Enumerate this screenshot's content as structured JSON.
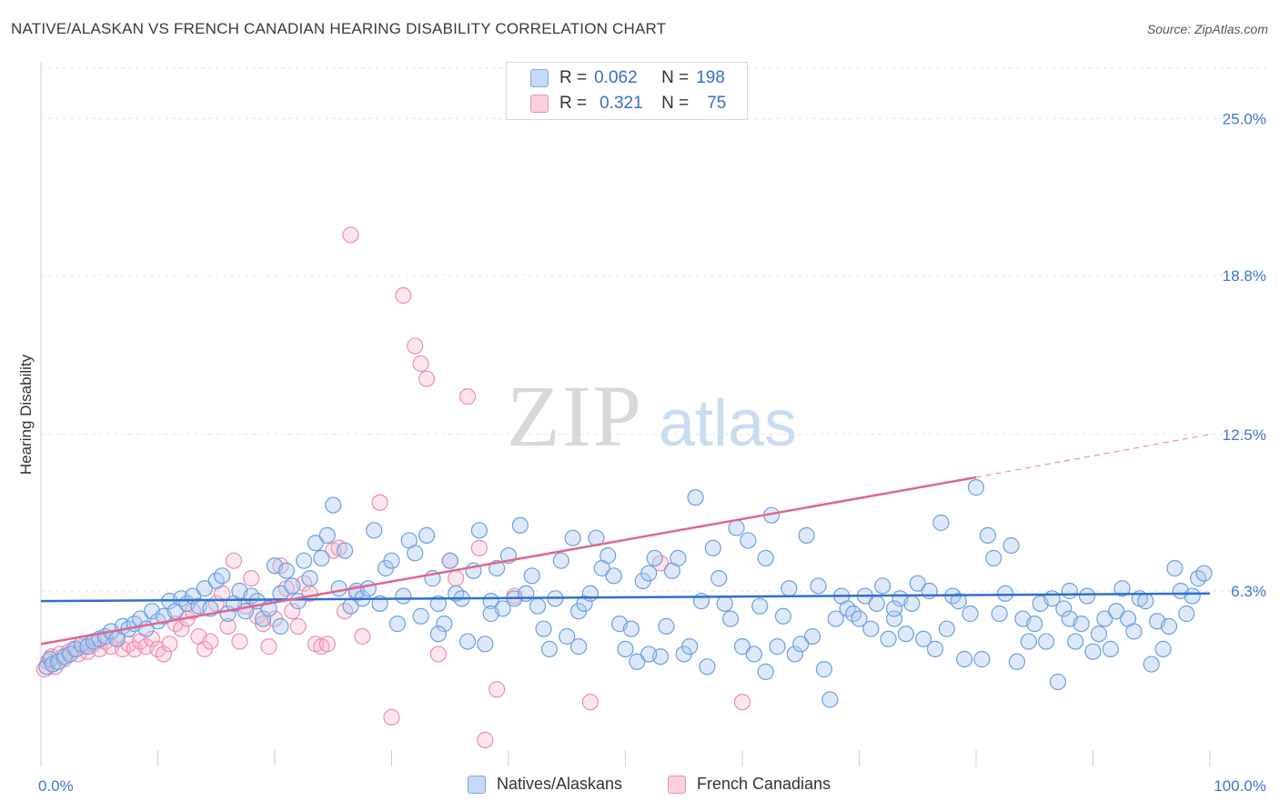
{
  "title": "NATIVE/ALASKAN VS FRENCH CANADIAN HEARING DISABILITY CORRELATION CHART",
  "source": "Source: ZipAtlas.com",
  "watermark": {
    "part1": "ZIP",
    "part2": "atlas"
  },
  "legend": {
    "rows": [
      {
        "r_label": "R =",
        "r_value": "0.062",
        "n_label": "N =",
        "n_value": "198",
        "color": "#aac8f0"
      },
      {
        "r_label": "R =",
        "r_value": "0.321",
        "n_label": "N =",
        "n_value": "75",
        "color": "#f5b8cb"
      }
    ]
  },
  "bottom_legend": [
    {
      "label": "Natives/Alaskans",
      "color": "#aac8f0"
    },
    {
      "label": "French Canadians",
      "color": "#f5b8cb"
    }
  ],
  "chart_data": {
    "type": "scatter",
    "xlabel": "",
    "ylabel": "Hearing Disability",
    "xlim": [
      0,
      100
    ],
    "ylim": [
      0,
      27
    ],
    "x_tick_labels": [
      "0.0%",
      "100.0%"
    ],
    "y_ticks": [
      6.3,
      12.5,
      18.8,
      25.0
    ],
    "y_tick_labels": [
      "6.3%",
      "12.5%",
      "18.8%",
      "25.0%"
    ],
    "grid": true,
    "colors": {
      "blue": "#6d9fe0",
      "pink": "#ec8fb0",
      "blue_line": "#2e6fd0",
      "pink_line": "#e0658f"
    },
    "series": [
      {
        "name": "Natives/Alaskans",
        "trend": {
          "x0": 0,
          "y0": 5.9,
          "x1": 100,
          "y1": 6.2
        },
        "points": [
          [
            0.5,
            3.3
          ],
          [
            0.8,
            3.6
          ],
          [
            1.0,
            3.4
          ],
          [
            1.5,
            3.5
          ],
          [
            2.0,
            3.7
          ],
          [
            2.5,
            3.8
          ],
          [
            3.0,
            4.0
          ],
          [
            3.5,
            4.2
          ],
          [
            4.0,
            4.1
          ],
          [
            4.5,
            4.3
          ],
          [
            5.0,
            4.4
          ],
          [
            5.5,
            4.5
          ],
          [
            6.0,
            4.7
          ],
          [
            6.5,
            4.4
          ],
          [
            7.0,
            4.9
          ],
          [
            7.5,
            4.8
          ],
          [
            8.0,
            5.0
          ],
          [
            8.5,
            5.2
          ],
          [
            9.0,
            4.8
          ],
          [
            9.5,
            5.5
          ],
          [
            10.0,
            5.1
          ],
          [
            10.5,
            5.3
          ],
          [
            11.0,
            5.9
          ],
          [
            11.5,
            5.5
          ],
          [
            12.0,
            6.0
          ],
          [
            12.5,
            5.8
          ],
          [
            13.0,
            6.1
          ],
          [
            13.5,
            5.7
          ],
          [
            14.0,
            6.4
          ],
          [
            14.5,
            5.6
          ],
          [
            15.0,
            6.7
          ],
          [
            15.5,
            6.9
          ],
          [
            16.0,
            5.4
          ],
          [
            16.5,
            5.8
          ],
          [
            17.0,
            6.3
          ],
          [
            17.5,
            5.5
          ],
          [
            18.0,
            6.1
          ],
          [
            18.5,
            5.9
          ],
          [
            19.0,
            5.2
          ],
          [
            19.5,
            5.6
          ],
          [
            20.0,
            7.3
          ],
          [
            20.5,
            6.2
          ],
          [
            21.0,
            7.1
          ],
          [
            21.5,
            6.5
          ],
          [
            22.0,
            5.9
          ],
          [
            22.5,
            7.5
          ],
          [
            23.0,
            6.8
          ],
          [
            23.5,
            8.2
          ],
          [
            24.0,
            7.6
          ],
          [
            24.5,
            8.5
          ],
          [
            25.0,
            9.7
          ],
          [
            25.5,
            6.4
          ],
          [
            26.0,
            7.9
          ],
          [
            26.5,
            5.7
          ],
          [
            27.0,
            6.3
          ],
          [
            27.5,
            6.0
          ],
          [
            28.0,
            6.4
          ],
          [
            28.5,
            8.7
          ],
          [
            29.0,
            5.8
          ],
          [
            29.5,
            7.2
          ],
          [
            30.0,
            7.5
          ],
          [
            30.5,
            5.0
          ],
          [
            31.0,
            6.1
          ],
          [
            31.5,
            8.3
          ],
          [
            32.0,
            7.8
          ],
          [
            32.5,
            5.3
          ],
          [
            33.0,
            8.5
          ],
          [
            33.5,
            6.8
          ],
          [
            34.0,
            5.8
          ],
          [
            34.5,
            5.0
          ],
          [
            35.0,
            7.5
          ],
          [
            35.5,
            6.2
          ],
          [
            36.0,
            6.0
          ],
          [
            36.5,
            4.3
          ],
          [
            37.0,
            7.1
          ],
          [
            37.5,
            8.7
          ],
          [
            38.0,
            4.2
          ],
          [
            38.5,
            5.9
          ],
          [
            39.0,
            7.2
          ],
          [
            39.5,
            5.6
          ],
          [
            40.0,
            7.7
          ],
          [
            40.5,
            6.0
          ],
          [
            41.0,
            8.9
          ],
          [
            41.5,
            6.2
          ],
          [
            42.0,
            6.9
          ],
          [
            42.5,
            5.7
          ],
          [
            43.0,
            4.8
          ],
          [
            43.5,
            4.0
          ],
          [
            44.0,
            6.0
          ],
          [
            44.5,
            7.5
          ],
          [
            45.0,
            4.5
          ],
          [
            45.5,
            8.4
          ],
          [
            46.0,
            5.5
          ],
          [
            46.5,
            5.8
          ],
          [
            47.0,
            6.2
          ],
          [
            47.5,
            8.4
          ],
          [
            48.0,
            7.2
          ],
          [
            48.5,
            7.7
          ],
          [
            49.0,
            6.9
          ],
          [
            49.5,
            5.0
          ],
          [
            50.0,
            4.0
          ],
          [
            50.5,
            4.8
          ],
          [
            51.0,
            3.5
          ],
          [
            51.5,
            6.7
          ],
          [
            52.0,
            7.0
          ],
          [
            52.5,
            7.6
          ],
          [
            53.0,
            3.7
          ],
          [
            53.5,
            4.9
          ],
          [
            54.0,
            7.1
          ],
          [
            54.5,
            7.6
          ],
          [
            55.0,
            3.8
          ],
          [
            55.5,
            4.1
          ],
          [
            56.0,
            10.0
          ],
          [
            56.5,
            5.9
          ],
          [
            57.0,
            3.3
          ],
          [
            57.5,
            8.0
          ],
          [
            58.0,
            6.8
          ],
          [
            58.5,
            5.8
          ],
          [
            59.0,
            5.2
          ],
          [
            59.5,
            8.8
          ],
          [
            60.0,
            4.1
          ],
          [
            60.5,
            8.3
          ],
          [
            61.0,
            3.8
          ],
          [
            61.5,
            5.7
          ],
          [
            62.0,
            7.6
          ],
          [
            62.5,
            9.3
          ],
          [
            63.0,
            4.1
          ],
          [
            63.5,
            5.3
          ],
          [
            64.0,
            6.4
          ],
          [
            64.5,
            3.8
          ],
          [
            65.0,
            4.2
          ],
          [
            65.5,
            8.5
          ],
          [
            66.0,
            4.5
          ],
          [
            66.5,
            6.5
          ],
          [
            67.0,
            3.2
          ],
          [
            67.5,
            2.0
          ],
          [
            68.0,
            5.2
          ],
          [
            68.5,
            6.1
          ],
          [
            69.0,
            5.6
          ],
          [
            69.5,
            5.4
          ],
          [
            70.0,
            5.2
          ],
          [
            70.5,
            6.1
          ],
          [
            71.0,
            4.8
          ],
          [
            71.5,
            5.8
          ],
          [
            72.0,
            6.5
          ],
          [
            72.5,
            4.4
          ],
          [
            73.0,
            5.2
          ],
          [
            73.5,
            6.0
          ],
          [
            74.0,
            4.6
          ],
          [
            74.5,
            5.8
          ],
          [
            75.0,
            6.6
          ],
          [
            75.5,
            4.4
          ],
          [
            76.0,
            6.3
          ],
          [
            76.5,
            4.0
          ],
          [
            77.0,
            9.0
          ],
          [
            77.5,
            4.8
          ],
          [
            78.0,
            6.1
          ],
          [
            78.5,
            5.9
          ],
          [
            79.0,
            3.6
          ],
          [
            79.5,
            5.4
          ],
          [
            80.0,
            10.4
          ],
          [
            80.5,
            3.6
          ],
          [
            81.0,
            8.5
          ],
          [
            81.5,
            7.6
          ],
          [
            82.0,
            5.4
          ],
          [
            82.5,
            6.2
          ],
          [
            83.0,
            8.1
          ],
          [
            83.5,
            3.5
          ],
          [
            84.0,
            5.2
          ],
          [
            84.5,
            4.3
          ],
          [
            85.0,
            5.0
          ],
          [
            85.5,
            5.8
          ],
          [
            86.0,
            4.3
          ],
          [
            86.5,
            6.0
          ],
          [
            87.0,
            2.7
          ],
          [
            87.5,
            5.6
          ],
          [
            88.0,
            5.2
          ],
          [
            88.5,
            4.3
          ],
          [
            89.0,
            5.0
          ],
          [
            89.5,
            6.1
          ],
          [
            90.0,
            3.9
          ],
          [
            90.5,
            4.6
          ],
          [
            91.0,
            5.2
          ],
          [
            91.5,
            4.0
          ],
          [
            92.0,
            5.5
          ],
          [
            92.5,
            6.4
          ],
          [
            93.0,
            5.2
          ],
          [
            93.5,
            4.7
          ],
          [
            94.0,
            6.0
          ],
          [
            94.5,
            5.9
          ],
          [
            95.0,
            3.4
          ],
          [
            95.5,
            5.1
          ],
          [
            96.0,
            4.0
          ],
          [
            96.5,
            4.9
          ],
          [
            97.0,
            7.2
          ],
          [
            97.5,
            6.3
          ],
          [
            98.0,
            5.4
          ],
          [
            98.5,
            6.1
          ],
          [
            99.0,
            6.8
          ],
          [
            99.5,
            7.0
          ],
          [
            62.0,
            3.1
          ],
          [
            73.0,
            5.6
          ],
          [
            88.0,
            6.3
          ],
          [
            34.0,
            4.6
          ],
          [
            52.0,
            3.8
          ],
          [
            46.0,
            4.1
          ],
          [
            38.5,
            5.4
          ],
          [
            20.5,
            4.9
          ]
        ]
      },
      {
        "name": "French Canadians",
        "trend": {
          "x0": 0,
          "y0": 4.2,
          "x1": 80,
          "y1": 10.8
        },
        "trend_extension": {
          "x0": 80,
          "y0": 10.8,
          "x1": 100,
          "y1": 12.5
        },
        "points": [
          [
            0.3,
            3.2
          ],
          [
            0.6,
            3.5
          ],
          [
            0.9,
            3.7
          ],
          [
            1.2,
            3.3
          ],
          [
            1.6,
            3.8
          ],
          [
            2.0,
            3.6
          ],
          [
            2.4,
            3.9
          ],
          [
            2.8,
            4.0
          ],
          [
            3.2,
            3.8
          ],
          [
            3.6,
            4.1
          ],
          [
            4.0,
            3.9
          ],
          [
            4.5,
            4.2
          ],
          [
            5.0,
            4.0
          ],
          [
            5.5,
            4.3
          ],
          [
            6.0,
            4.1
          ],
          [
            6.5,
            4.4
          ],
          [
            7.0,
            4.0
          ],
          [
            7.5,
            4.2
          ],
          [
            8.0,
            4.0
          ],
          [
            8.5,
            4.3
          ],
          [
            9.0,
            4.1
          ],
          [
            9.5,
            4.4
          ],
          [
            10.0,
            4.0
          ],
          [
            10.5,
            3.8
          ],
          [
            11.0,
            4.2
          ],
          [
            11.5,
            5.0
          ],
          [
            12.0,
            4.8
          ],
          [
            12.5,
            5.2
          ],
          [
            13.0,
            5.5
          ],
          [
            13.5,
            4.5
          ],
          [
            14.0,
            4.0
          ],
          [
            14.5,
            4.3
          ],
          [
            15.0,
            5.8
          ],
          [
            15.5,
            6.2
          ],
          [
            16.0,
            4.9
          ],
          [
            16.5,
            7.5
          ],
          [
            17.0,
            4.3
          ],
          [
            17.5,
            5.7
          ],
          [
            18.0,
            6.8
          ],
          [
            18.5,
            5.3
          ],
          [
            19.0,
            5.0
          ],
          [
            19.5,
            4.1
          ],
          [
            20.0,
            5.2
          ],
          [
            20.5,
            7.3
          ],
          [
            21.0,
            6.4
          ],
          [
            21.5,
            5.5
          ],
          [
            22.0,
            4.9
          ],
          [
            22.5,
            6.6
          ],
          [
            23.0,
            6.2
          ],
          [
            23.5,
            4.2
          ],
          [
            24.0,
            4.1
          ],
          [
            24.5,
            4.2
          ],
          [
            25.0,
            7.9
          ],
          [
            25.5,
            8.0
          ],
          [
            26.0,
            5.5
          ],
          [
            26.5,
            20.4
          ],
          [
            27.0,
            6.2
          ],
          [
            27.5,
            4.5
          ],
          [
            29.0,
            9.8
          ],
          [
            30.0,
            1.3
          ],
          [
            31.0,
            18.0
          ],
          [
            32.0,
            16.0
          ],
          [
            32.5,
            15.3
          ],
          [
            33.0,
            14.7
          ],
          [
            34.0,
            3.8
          ],
          [
            35.0,
            7.5
          ],
          [
            35.5,
            6.8
          ],
          [
            36.5,
            14.0
          ],
          [
            37.5,
            8.0
          ],
          [
            38.0,
            0.4
          ],
          [
            39.0,
            2.4
          ],
          [
            40.5,
            6.1
          ],
          [
            47.0,
            1.9
          ],
          [
            53.0,
            7.4
          ],
          [
            60.0,
            1.9
          ]
        ]
      }
    ]
  }
}
